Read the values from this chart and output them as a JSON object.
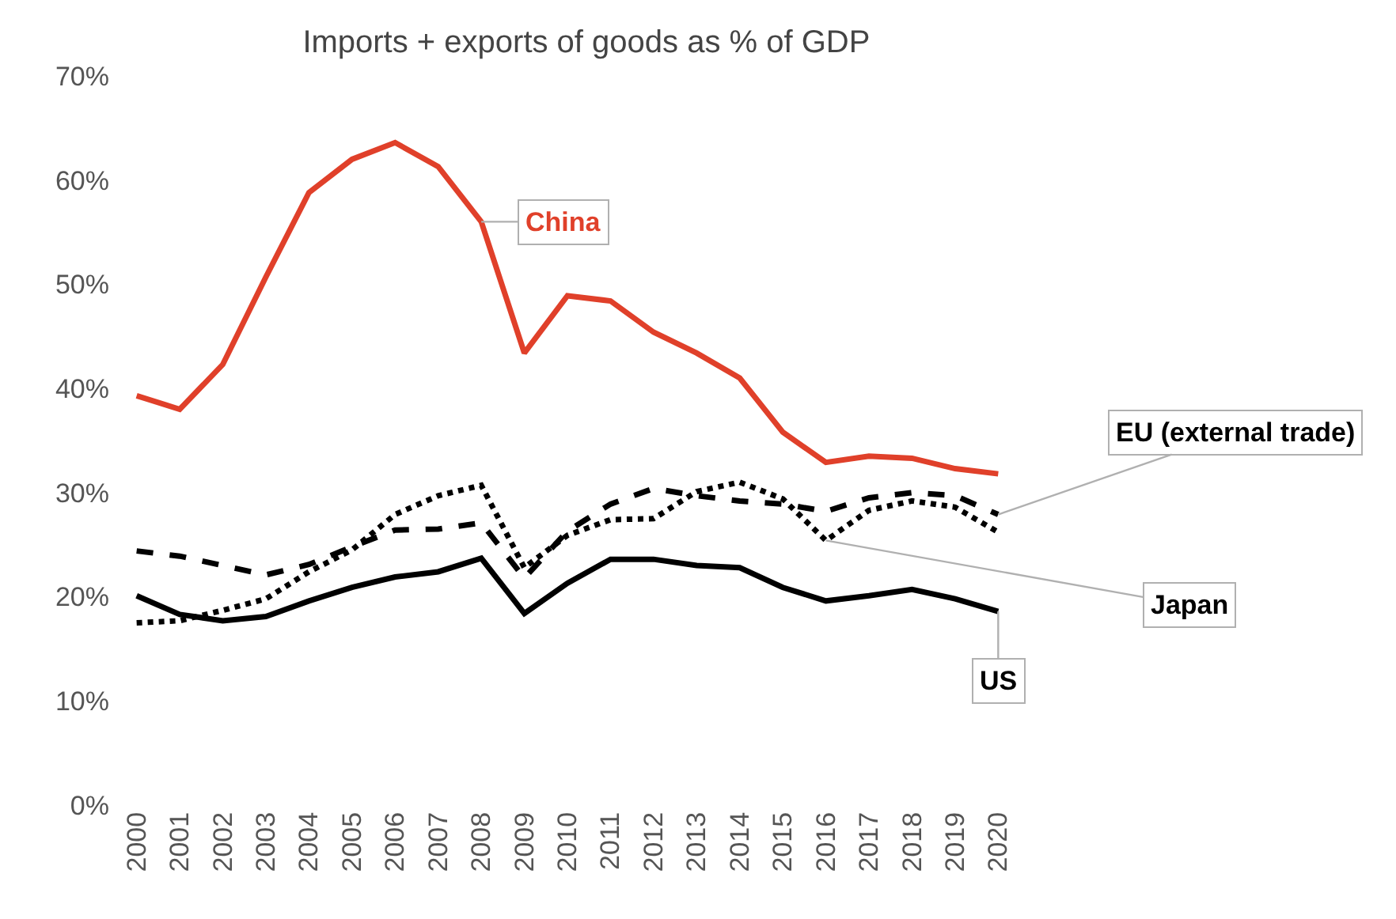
{
  "chart_data": {
    "type": "line",
    "title": "Imports + exports of goods as % of GDP",
    "categories": [
      "2000",
      "2001",
      "2002",
      "2003",
      "2004",
      "2005",
      "2006",
      "2007",
      "2008",
      "2009",
      "2010",
      "2011",
      "2012",
      "2013",
      "2014",
      "2015",
      "2016",
      "2017",
      "2018",
      "2019",
      "2020"
    ],
    "series": [
      {
        "name": "China",
        "color": "#e0402a",
        "line_style": "solid",
        "values": [
          39.3,
          38,
          42.3,
          50.7,
          58.8,
          62,
          63.6,
          61.3,
          56,
          43.4,
          48.9,
          48.4,
          45.4,
          43.4,
          41,
          35.8,
          32.9,
          33.5,
          33.3,
          32.3,
          31.8
        ]
      },
      {
        "name": "EU (external trade)",
        "color": "#000000",
        "line_style": "dashed",
        "values": [
          24.4,
          23.9,
          23,
          22.1,
          23.1,
          24.8,
          26.4,
          26.5,
          27.1,
          21.8,
          26.3,
          28.9,
          30.4,
          29.7,
          29.2,
          28.9,
          28.2,
          29.5,
          30,
          29.7,
          27.9
        ]
      },
      {
        "name": "Japan",
        "color": "#000000",
        "line_style": "dotted",
        "values": [
          17.5,
          17.7,
          18.7,
          19.8,
          22.4,
          24.5,
          27.9,
          29.7,
          30.7,
          22.8,
          25.9,
          27.4,
          27.5,
          30.1,
          31,
          29.4,
          25.4,
          28.3,
          29.2,
          28.6,
          26.2
        ]
      },
      {
        "name": "US",
        "color": "#000000",
        "line_style": "solid",
        "values": [
          20.1,
          18.3,
          17.7,
          18.1,
          19.6,
          20.9,
          21.9,
          22.4,
          23.7,
          18.4,
          21.3,
          23.6,
          23.6,
          23,
          22.8,
          20.9,
          19.6,
          20.1,
          20.7,
          19.8,
          18.6
        ]
      }
    ],
    "ylim": [
      0,
      70
    ],
    "yticks": [
      {
        "value": 0,
        "label": "0%"
      },
      {
        "value": 10,
        "label": "10%"
      },
      {
        "value": 20,
        "label": "20%"
      },
      {
        "value": 30,
        "label": "30%"
      },
      {
        "value": 40,
        "label": "40%"
      },
      {
        "value": 50,
        "label": "50%"
      },
      {
        "value": 60,
        "label": "60%"
      },
      {
        "value": 70,
        "label": "70%"
      }
    ],
    "legend": false,
    "marker": "none"
  }
}
